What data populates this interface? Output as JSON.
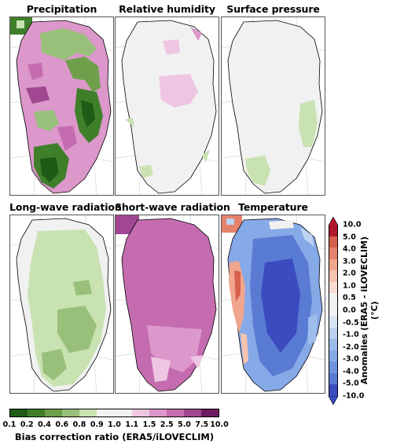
{
  "panels": [
    {
      "title": "Precipitation"
    },
    {
      "title": "Relative humidity"
    },
    {
      "title": "Surface pressure"
    },
    {
      "title": "Long-wave radiation"
    },
    {
      "title": "Short-wave radiation"
    },
    {
      "title": "Temperature"
    }
  ],
  "ratio_colorbar": {
    "label": "Bias correction ratio (ERA5/iLOVECLIM)",
    "ticks": [
      "0.1",
      "0.2",
      "0.4",
      "0.6",
      "0.8",
      "0.9",
      "1.0",
      "1.1",
      "1.5",
      "2.5",
      "5.0",
      "7.5",
      "10.0"
    ],
    "colors": [
      "#1f5a17",
      "#3f7f2a",
      "#6ea04c",
      "#99c07a",
      "#c9e2b2",
      "#f1f1f1",
      "#f1f1f1",
      "#eec6e2",
      "#dc97cb",
      "#c56cb0",
      "#a14791",
      "#6e1a5e"
    ]
  },
  "anomaly_colorbar": {
    "label_line1": "Anomalies (ERA5 - iLOVECLIM)",
    "label_line2": "(°C)",
    "ticks": [
      "10.0",
      "5.0",
      "4.0",
      "3.0",
      "2.0",
      "1.0",
      "0.5",
      "0.0",
      "-0.5",
      "-1.0",
      "-2.0",
      "-3.0",
      "-4.0",
      "-5.0",
      "-10.0"
    ],
    "colors": [
      "#b2182b",
      "#d6604d",
      "#e4826b",
      "#f0a58d",
      "#f6c4b0",
      "#f7ddd2",
      "#f1f1f1",
      "#f1f1f1",
      "#d6e3f2",
      "#bcd2ef",
      "#9fbdec",
      "#86a9e7",
      "#6d93de",
      "#5a7bd3",
      "#3b4cc0"
    ]
  }
}
